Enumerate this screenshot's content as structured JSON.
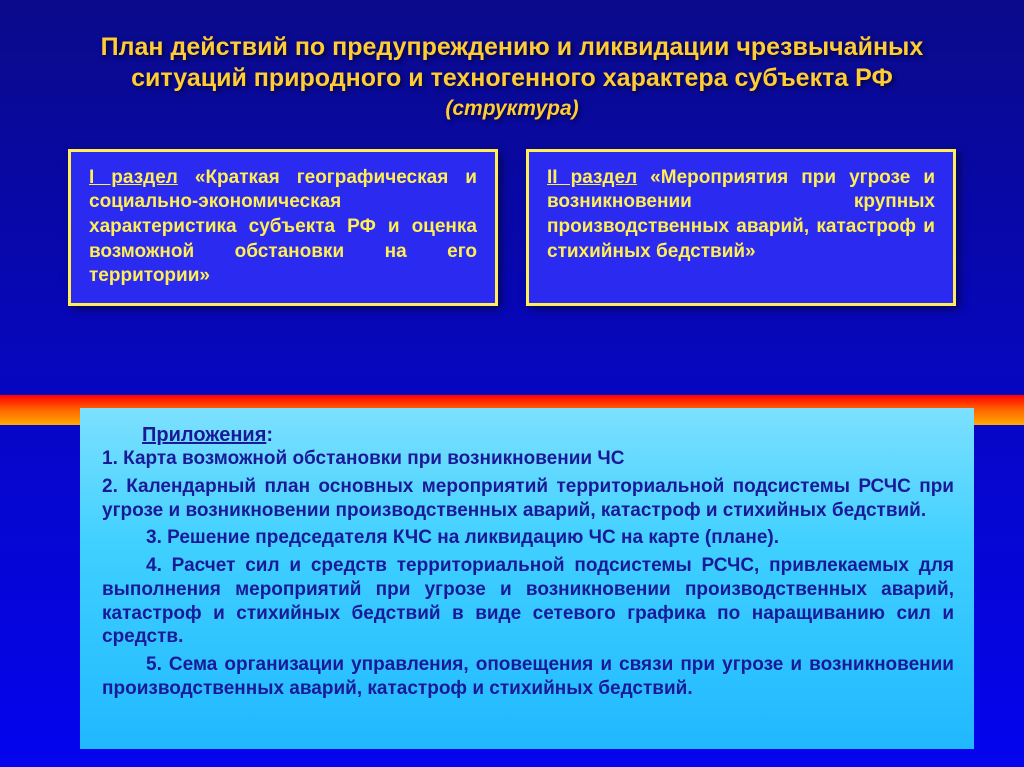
{
  "title": {
    "main": "План действий по предупреждению и ликвидации чрезвычайных ситуаций природного и техногенного характера субъекта РФ",
    "sub": "(структура)"
  },
  "sections": {
    "left": {
      "label": "I раздел",
      "body": " «Краткая географи­ческая и социально-экономическая характеристика субъекта РФ и оценка возможной обстановки на его территории»"
    },
    "right": {
      "label": "II раздел",
      "body": " «Мероприятия при угрозе и возникновении крупных производственных аварий, катастроф и стихийных бедствий»"
    }
  },
  "appendix": {
    "title": "Приложения",
    "items": [
      "1.  Карта возможной обстановки при возникновении ЧС",
      "2. Календарный план основных мероприятий территориальной подсистемы РСЧС при угрозе и возникновении производственных аварий, катастроф и стихийных бедствий.",
      "3. Решение председателя КЧС на ликвидацию ЧС на карте (плане).",
      "4. Расчет сил и средств территориальной подсистемы РСЧС, привлекаемых для выполнения мероприятий при угрозе и возникновении производственных аварий, катастроф и стихийных бедствий в виде сетевого графика по наращиванию сил и средств.",
      "5. Сема организации управления, оповещения и связи при угрозе и возникновении производственных аварий, катастроф и стихийных бедствий."
    ]
  },
  "colors": {
    "title_text": "#ffcc33",
    "box_bg": "#2a2af0",
    "box_border": "#ffee55",
    "box_text": "#ffee55",
    "appendix_text": "#1a1a99"
  }
}
